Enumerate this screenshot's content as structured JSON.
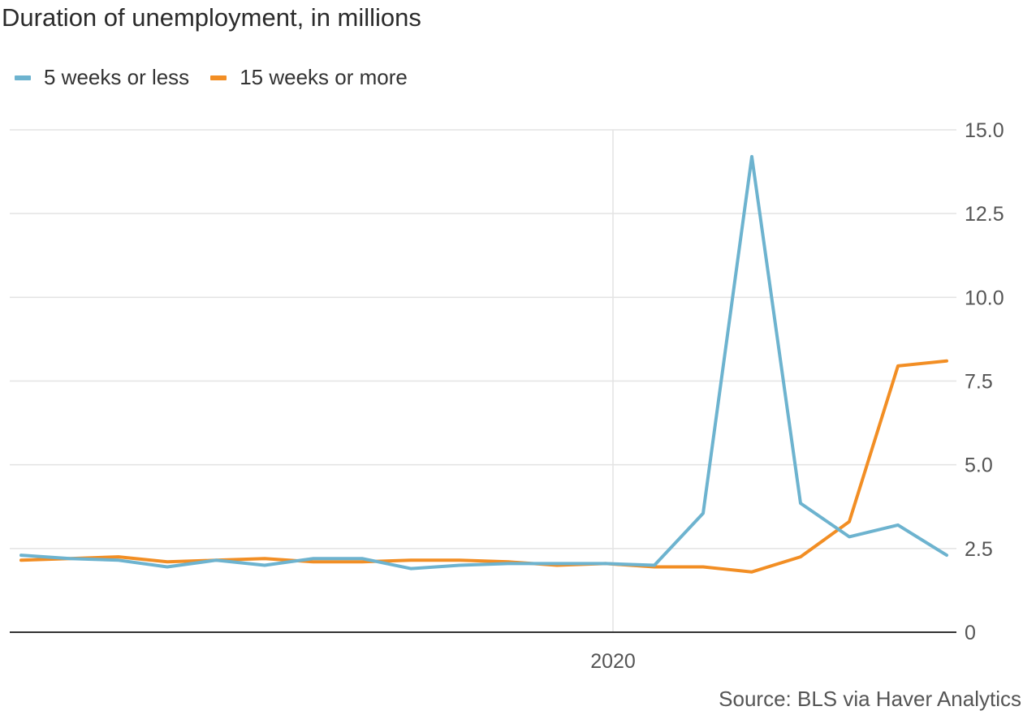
{
  "title": "Duration of unemployment, in millions",
  "source": "Source: BLS via Haver Analytics",
  "colors": {
    "series_1": "#6db3cf",
    "series_2": "#f28e24",
    "grid": "#e3e3e3",
    "axis": "#333333"
  },
  "chart_data": {
    "type": "line",
    "title": "Duration of unemployment, in millions",
    "xlabel": "",
    "ylabel": "",
    "x_tick_labels": [
      "2020"
    ],
    "y_tick_labels": [
      "15.0",
      "12.5",
      "10.0",
      "7.5",
      "5.0",
      "2.5",
      "0"
    ],
    "y_ticks": [
      15,
      12.5,
      10,
      7.5,
      5,
      2.5,
      0
    ],
    "ylim": [
      0,
      15
    ],
    "grid": true,
    "legend_position": "top-left",
    "x_index_of_2020": 12.15,
    "series": [
      {
        "name": "5 weeks or less",
        "values": [
          2.3,
          2.2,
          2.15,
          1.95,
          2.15,
          2.0,
          2.2,
          2.2,
          1.9,
          2.0,
          2.05,
          2.05,
          2.05,
          2.0,
          3.55,
          14.2,
          3.85,
          2.85,
          3.2,
          2.3
        ]
      },
      {
        "name": "15 weeks or more",
        "values": [
          2.15,
          2.2,
          2.25,
          2.1,
          2.15,
          2.2,
          2.1,
          2.1,
          2.15,
          2.15,
          2.1,
          2.0,
          2.05,
          1.95,
          1.95,
          1.8,
          2.25,
          3.3,
          7.95,
          8.1
        ]
      }
    ]
  }
}
